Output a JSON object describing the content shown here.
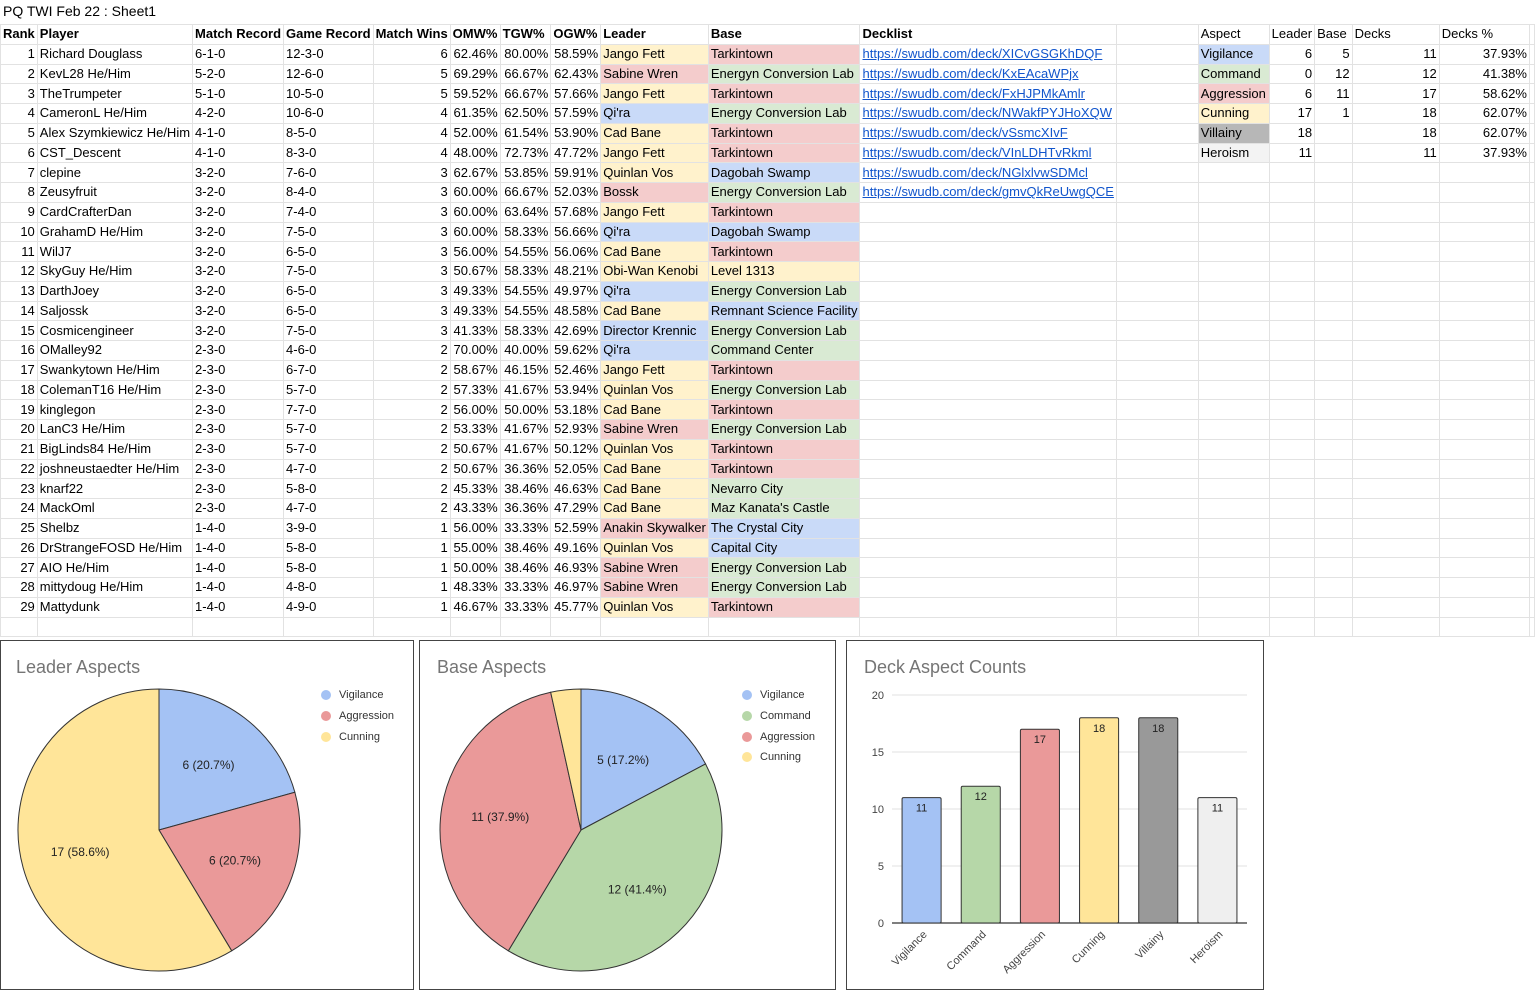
{
  "sheet_title": "PQ TWI Feb 22 : Sheet1",
  "colors": {
    "Vigilance": "#c9daf8",
    "Command": "#d9ead3",
    "Aggression": "#f4cccc",
    "Cunning": "#fff2cc",
    "Villainy": "#b7b7b7",
    "Heroism": "#f3f3f3"
  },
  "table": {
    "headers": [
      "Rank",
      "Player",
      "Match Record",
      "Game Record",
      "Match Wins",
      "OMW%",
      "TGW%",
      "OGW%",
      "Leader",
      "Base",
      "Decklist"
    ],
    "rows": [
      {
        "rank": "1",
        "player": "Richard Douglass",
        "match": "6-1-0",
        "game": "12-3-0",
        "wins": "6",
        "omw": "62.46%",
        "tgw": "80.00%",
        "ogw": "58.59%",
        "leader": "Jango Fett",
        "leader_aspect": "Cunning",
        "base": "Tarkintown",
        "base_aspect": "Aggression",
        "decklist": "https://swudb.com/deck/XICvGSGKhDQF"
      },
      {
        "rank": "2",
        "player": "KevL28 He/Him",
        "match": "5-2-0",
        "game": "12-6-0",
        "wins": "5",
        "omw": "69.29%",
        "tgw": "66.67%",
        "ogw": "62.43%",
        "leader": "Sabine Wren",
        "leader_aspect": "Aggression",
        "base": "Energyn Conversion Lab",
        "base_aspect": "Command",
        "decklist": "https://swudb.com/deck/KxEAcaWPjx"
      },
      {
        "rank": "3",
        "player": "TheTrumpeter",
        "match": "5-1-0",
        "game": "10-5-0",
        "wins": "5",
        "omw": "59.52%",
        "tgw": "66.67%",
        "ogw": "57.66%",
        "leader": "Jango Fett",
        "leader_aspect": "Cunning",
        "base": "Tarkintown",
        "base_aspect": "Aggression",
        "decklist": "https://swudb.com/deck/FxHJPMkAmlr"
      },
      {
        "rank": "4",
        "player": "CameronL He/Him",
        "match": "4-2-0",
        "game": "10-6-0",
        "wins": "4",
        "omw": "61.35%",
        "tgw": "62.50%",
        "ogw": "57.59%",
        "leader": "Qi'ra",
        "leader_aspect": "Vigilance",
        "base": "Energy Conversion Lab",
        "base_aspect": "Command",
        "decklist": "https://swudb.com/deck/NWakfPYJHoXQW"
      },
      {
        "rank": "5",
        "player": "Alex Szymkiewicz He/Him",
        "match": "4-1-0",
        "game": "8-5-0",
        "wins": "4",
        "omw": "52.00%",
        "tgw": "61.54%",
        "ogw": "53.90%",
        "leader": "Cad Bane",
        "leader_aspect": "Cunning",
        "base": "Tarkintown",
        "base_aspect": "Aggression",
        "decklist": "https://swudb.com/deck/vSsmcXIvF"
      },
      {
        "rank": "6",
        "player": "CST_Descent",
        "match": "4-1-0",
        "game": "8-3-0",
        "wins": "4",
        "omw": "48.00%",
        "tgw": "72.73%",
        "ogw": "47.72%",
        "leader": "Jango Fett",
        "leader_aspect": "Cunning",
        "base": "Tarkintown",
        "base_aspect": "Aggression",
        "decklist": "https://swudb.com/deck/VInLDHTvRkml"
      },
      {
        "rank": "7",
        "player": "clepine",
        "match": "3-2-0",
        "game": "7-6-0",
        "wins": "3",
        "omw": "62.67%",
        "tgw": "53.85%",
        "ogw": "59.91%",
        "leader": "Quinlan Vos",
        "leader_aspect": "Cunning",
        "base": "Dagobah Swamp",
        "base_aspect": "Vigilance",
        "decklist": "https://swudb.com/deck/NGlxlvwSDMcl"
      },
      {
        "rank": "8",
        "player": "Zeusyfruit",
        "match": "3-2-0",
        "game": "8-4-0",
        "wins": "3",
        "omw": "60.00%",
        "tgw": "66.67%",
        "ogw": "52.03%",
        "leader": "Bossk",
        "leader_aspect": "Aggression",
        "base": "Energy Conversion Lab",
        "base_aspect": "Command",
        "decklist": "https://swudb.com/deck/gmvQkReUwgQCE"
      },
      {
        "rank": "9",
        "player": "CardCrafterDan",
        "match": "3-2-0",
        "game": "7-4-0",
        "wins": "3",
        "omw": "60.00%",
        "tgw": "63.64%",
        "ogw": "57.68%",
        "leader": "Jango Fett",
        "leader_aspect": "Cunning",
        "base": "Tarkintown",
        "base_aspect": "Aggression",
        "decklist": ""
      },
      {
        "rank": "10",
        "player": "GrahamD He/Him",
        "match": "3-2-0",
        "game": "7-5-0",
        "wins": "3",
        "omw": "60.00%",
        "tgw": "58.33%",
        "ogw": "56.66%",
        "leader": "Qi'ra",
        "leader_aspect": "Vigilance",
        "base": "Dagobah Swamp",
        "base_aspect": "Vigilance",
        "decklist": ""
      },
      {
        "rank": "11",
        "player": "WilJ7",
        "match": "3-2-0",
        "game": "6-5-0",
        "wins": "3",
        "omw": "56.00%",
        "tgw": "54.55%",
        "ogw": "56.06%",
        "leader": "Cad Bane",
        "leader_aspect": "Cunning",
        "base": "Tarkintown",
        "base_aspect": "Aggression",
        "decklist": ""
      },
      {
        "rank": "12",
        "player": "SkyGuy He/Him",
        "match": "3-2-0",
        "game": "7-5-0",
        "wins": "3",
        "omw": "50.67%",
        "tgw": "58.33%",
        "ogw": "48.21%",
        "leader": "Obi-Wan Kenobi",
        "leader_aspect": "Cunning",
        "base": "Level 1313",
        "base_aspect": "Cunning",
        "decklist": ""
      },
      {
        "rank": "13",
        "player": "DarthJoey",
        "match": "3-2-0",
        "game": "6-5-0",
        "wins": "3",
        "omw": "49.33%",
        "tgw": "54.55%",
        "ogw": "49.97%",
        "leader": "Qi'ra",
        "leader_aspect": "Vigilance",
        "base": "Energy Conversion Lab",
        "base_aspect": "Command",
        "decklist": ""
      },
      {
        "rank": "14",
        "player": "Saljossk",
        "match": "3-2-0",
        "game": "6-5-0",
        "wins": "3",
        "omw": "49.33%",
        "tgw": "54.55%",
        "ogw": "48.58%",
        "leader": "Cad Bane",
        "leader_aspect": "Cunning",
        "base": "Remnant Science Facility",
        "base_aspect": "Vigilance",
        "decklist": ""
      },
      {
        "rank": "15",
        "player": "Cosmicengineer",
        "match": "3-2-0",
        "game": "7-5-0",
        "wins": "3",
        "omw": "41.33%",
        "tgw": "58.33%",
        "ogw": "42.69%",
        "leader": "Director Krennic",
        "leader_aspect": "Vigilance",
        "base": "Energy Conversion Lab",
        "base_aspect": "Command",
        "decklist": ""
      },
      {
        "rank": "16",
        "player": "OMalley92",
        "match": "2-3-0",
        "game": "4-6-0",
        "wins": "2",
        "omw": "70.00%",
        "tgw": "40.00%",
        "ogw": "59.62%",
        "leader": "Qi'ra",
        "leader_aspect": "Vigilance",
        "base": "Command Center",
        "base_aspect": "Command",
        "decklist": ""
      },
      {
        "rank": "17",
        "player": "Swankytown He/Him",
        "match": "2-3-0",
        "game": "6-7-0",
        "wins": "2",
        "omw": "58.67%",
        "tgw": "46.15%",
        "ogw": "52.46%",
        "leader": "Jango Fett",
        "leader_aspect": "Cunning",
        "base": "Tarkintown",
        "base_aspect": "Aggression",
        "decklist": ""
      },
      {
        "rank": "18",
        "player": "ColemanT16 He/Him",
        "match": "2-3-0",
        "game": "5-7-0",
        "wins": "2",
        "omw": "57.33%",
        "tgw": "41.67%",
        "ogw": "53.94%",
        "leader": "Quinlan Vos",
        "leader_aspect": "Cunning",
        "base": "Energy Conversion Lab",
        "base_aspect": "Command",
        "decklist": ""
      },
      {
        "rank": "19",
        "player": "kinglegon",
        "match": "2-3-0",
        "game": "7-7-0",
        "wins": "2",
        "omw": "56.00%",
        "tgw": "50.00%",
        "ogw": "53.18%",
        "leader": "Cad Bane",
        "leader_aspect": "Cunning",
        "base": "Tarkintown",
        "base_aspect": "Aggression",
        "decklist": ""
      },
      {
        "rank": "20",
        "player": "LanC3 He/Him",
        "match": "2-3-0",
        "game": "5-7-0",
        "wins": "2",
        "omw": "53.33%",
        "tgw": "41.67%",
        "ogw": "52.93%",
        "leader": "Sabine Wren",
        "leader_aspect": "Aggression",
        "base": "Energy Conversion Lab",
        "base_aspect": "Command",
        "decklist": ""
      },
      {
        "rank": "21",
        "player": "BigLinds84 He/Him",
        "match": "2-3-0",
        "game": "5-7-0",
        "wins": "2",
        "omw": "50.67%",
        "tgw": "41.67%",
        "ogw": "50.12%",
        "leader": "Quinlan Vos",
        "leader_aspect": "Cunning",
        "base": "Tarkintown",
        "base_aspect": "Aggression",
        "decklist": ""
      },
      {
        "rank": "22",
        "player": "joshneustaedter He/Him",
        "match": "2-3-0",
        "game": "4-7-0",
        "wins": "2",
        "omw": "50.67%",
        "tgw": "36.36%",
        "ogw": "52.05%",
        "leader": "Cad Bane",
        "leader_aspect": "Cunning",
        "base": "Tarkintown",
        "base_aspect": "Aggression",
        "decklist": ""
      },
      {
        "rank": "23",
        "player": "knarf22",
        "match": "2-3-0",
        "game": "5-8-0",
        "wins": "2",
        "omw": "45.33%",
        "tgw": "38.46%",
        "ogw": "46.63%",
        "leader": "Cad Bane",
        "leader_aspect": "Cunning",
        "base": "Nevarro City",
        "base_aspect": "Command",
        "decklist": ""
      },
      {
        "rank": "24",
        "player": "MackOml",
        "match": "2-3-0",
        "game": "4-7-0",
        "wins": "2",
        "omw": "43.33%",
        "tgw": "36.36%",
        "ogw": "47.29%",
        "leader": "Cad Bane",
        "leader_aspect": "Cunning",
        "base": "Maz Kanata's Castle",
        "base_aspect": "Command",
        "decklist": ""
      },
      {
        "rank": "25",
        "player": "Shelbz",
        "match": "1-4-0",
        "game": "3-9-0",
        "wins": "1",
        "omw": "56.00%",
        "tgw": "33.33%",
        "ogw": "52.59%",
        "leader": "Anakin Skywalker",
        "leader_aspect": "Aggression",
        "base": "The Crystal City",
        "base_aspect": "Vigilance",
        "decklist": ""
      },
      {
        "rank": "26",
        "player": "DrStrangeFOSD He/Him",
        "match": "1-4-0",
        "game": "5-8-0",
        "wins": "1",
        "omw": "55.00%",
        "tgw": "38.46%",
        "ogw": "49.16%",
        "leader": "Quinlan Vos",
        "leader_aspect": "Cunning",
        "base": "Capital City",
        "base_aspect": "Vigilance",
        "decklist": ""
      },
      {
        "rank": "27",
        "player": "AIO He/Him",
        "match": "1-4-0",
        "game": "5-8-0",
        "wins": "1",
        "omw": "50.00%",
        "tgw": "38.46%",
        "ogw": "46.93%",
        "leader": "Sabine Wren",
        "leader_aspect": "Aggression",
        "base": "Energy Conversion Lab",
        "base_aspect": "Command",
        "decklist": ""
      },
      {
        "rank": "28",
        "player": "mittydoug He/Him",
        "match": "1-4-0",
        "game": "4-8-0",
        "wins": "1",
        "omw": "48.33%",
        "tgw": "33.33%",
        "ogw": "46.97%",
        "leader": "Sabine Wren",
        "leader_aspect": "Aggression",
        "base": "Energy Conversion Lab",
        "base_aspect": "Command",
        "decklist": ""
      },
      {
        "rank": "29",
        "player": "Mattydunk",
        "match": "1-4-0",
        "game": "4-9-0",
        "wins": "1",
        "omw": "46.67%",
        "tgw": "33.33%",
        "ogw": "45.77%",
        "leader": "Quinlan Vos",
        "leader_aspect": "Cunning",
        "base": "Tarkintown",
        "base_aspect": "Aggression",
        "decklist": ""
      }
    ]
  },
  "aspect_table": {
    "headers": [
      "Aspect",
      "Leader",
      "Base",
      "Decks",
      "Decks %"
    ],
    "rows": [
      {
        "aspect": "Vigilance",
        "leader": "6",
        "base": "5",
        "decks": "11",
        "pct": "37.93%"
      },
      {
        "aspect": "Command",
        "leader": "0",
        "base": "12",
        "decks": "12",
        "pct": "41.38%"
      },
      {
        "aspect": "Aggression",
        "leader": "6",
        "base": "11",
        "decks": "17",
        "pct": "58.62%"
      },
      {
        "aspect": "Cunning",
        "leader": "17",
        "base": "1",
        "decks": "18",
        "pct": "62.07%"
      },
      {
        "aspect": "Villainy",
        "leader": "18",
        "base": "",
        "decks": "18",
        "pct": "62.07%"
      },
      {
        "aspect": "Heroism",
        "leader": "11",
        "base": "",
        "decks": "11",
        "pct": "37.93%"
      }
    ]
  },
  "chart_data": [
    {
      "type": "pie",
      "title": "Leader Aspects",
      "slices": [
        {
          "label": "Vigilance",
          "value": 6,
          "display": "6 (20.7%)",
          "color": "#a4c2f4"
        },
        {
          "label": "Aggression",
          "value": 6,
          "display": "6 (20.7%)",
          "color": "#ea9999"
        },
        {
          "label": "Cunning",
          "value": 17,
          "display": "17 (58.6%)",
          "color": "#ffe599"
        }
      ],
      "legend": [
        "Vigilance",
        "Aggression",
        "Cunning"
      ],
      "legend_position": "right"
    },
    {
      "type": "pie",
      "title": "Base Aspects",
      "slices": [
        {
          "label": "Vigilance",
          "value": 5,
          "display": "5 (17.2%)",
          "color": "#a4c2f4"
        },
        {
          "label": "Command",
          "value": 12,
          "display": "12 (41.4%)",
          "color": "#b6d7a8"
        },
        {
          "label": "Aggression",
          "value": 11,
          "display": "11 (37.9%)",
          "color": "#ea9999"
        },
        {
          "label": "Cunning",
          "value": 1,
          "display": "",
          "color": "#ffe599"
        }
      ],
      "legend": [
        "Vigilance",
        "Command",
        "Aggression",
        "Cunning"
      ],
      "legend_position": "right"
    },
    {
      "type": "bar",
      "title": "Deck Aspect Counts",
      "categories": [
        "Vigilance",
        "Command",
        "Aggression",
        "Cunning",
        "Villainy",
        "Heroism"
      ],
      "values": [
        11,
        12,
        17,
        18,
        18,
        11
      ],
      "colors": [
        "#a4c2f4",
        "#b6d7a8",
        "#ea9999",
        "#ffe599",
        "#999999",
        "#efefef"
      ],
      "ylim": [
        0,
        20
      ],
      "yticks": [
        0,
        5,
        10,
        15,
        20
      ],
      "grid": true
    }
  ]
}
